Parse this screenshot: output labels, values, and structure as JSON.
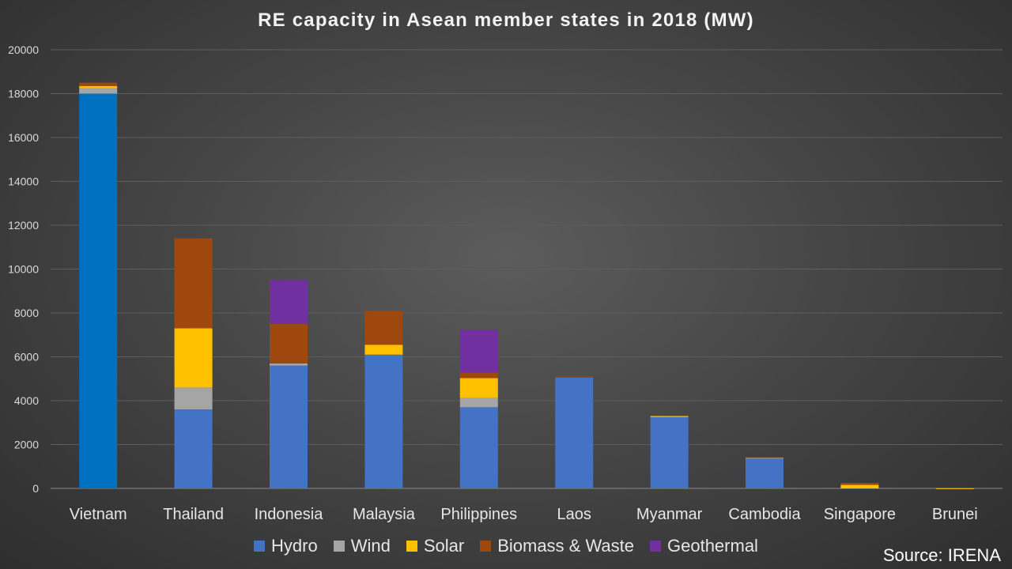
{
  "chart_data": {
    "type": "bar",
    "stacked": true,
    "title": "RE capacity in Asean member states in 2018 (MW)",
    "categories": [
      "Vietnam",
      "Thailand",
      "Indonesia",
      "Malaysia",
      "Philippines",
      "Laos",
      "Myanmar",
      "Cambodia",
      "Singapore",
      "Brunei"
    ],
    "series": [
      {
        "name": "Hydro",
        "color": "#4472c4",
        "values": [
          18000,
          3600,
          5600,
          6100,
          3700,
          5050,
          3250,
          1380,
          0,
          0
        ]
      },
      {
        "name": "Wind",
        "color": "#a5a5a5",
        "values": [
          250,
          1000,
          100,
          0,
          430,
          0,
          0,
          0,
          0,
          0
        ]
      },
      {
        "name": "Solar",
        "color": "#ffc000",
        "values": [
          100,
          2700,
          0,
          450,
          900,
          0,
          50,
          20,
          160,
          5
        ]
      },
      {
        "name": "Biomass & Waste",
        "color": "#9e480e",
        "values": [
          150,
          4100,
          1800,
          1550,
          250,
          50,
          0,
          20,
          90,
          0
        ]
      },
      {
        "name": "Geothermal",
        "color": "#7030a0",
        "values": [
          0,
          0,
          2000,
          0,
          1950,
          0,
          0,
          0,
          0,
          0
        ]
      }
    ],
    "ylim": [
      0,
      20000
    ],
    "yticks": [
      0,
      2000,
      4000,
      6000,
      8000,
      10000,
      12000,
      14000,
      16000,
      18000,
      20000
    ],
    "grid": true,
    "legend_position": "bottom",
    "highlight": {
      "category": "Vietnam",
      "series": "Hydro",
      "color": "#0070c0"
    }
  },
  "source_label": "Source: IRENA"
}
